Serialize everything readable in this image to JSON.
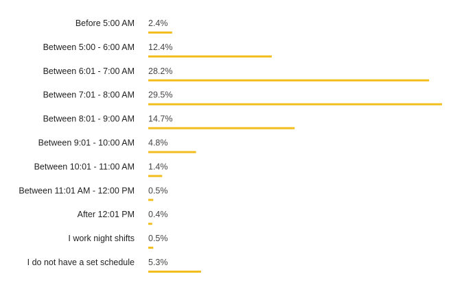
{
  "chart_data": {
    "type": "bar",
    "orientation": "horizontal",
    "categories": [
      "Before 5:00 AM",
      "Between 5:00 - 6:00 AM",
      "Between 6:01 - 7:00 AM",
      "Between 7:01 - 8:00 AM",
      "Between 8:01 - 9:00 AM",
      "Between 9:01 - 10:00 AM",
      "Between 10:01 - 11:00 AM",
      "Between 11:01 AM - 12:00 PM",
      "After 12:01 PM",
      "I work night shifts",
      "I do not have a set schedule"
    ],
    "values": [
      2.4,
      12.4,
      28.2,
      29.5,
      14.7,
      4.8,
      1.4,
      0.5,
      0.4,
      0.5,
      5.3
    ],
    "value_labels": [
      "2.4%",
      "12.4%",
      "28.2%",
      "29.5%",
      "14.7%",
      "4.8%",
      "1.4%",
      "0.5%",
      "0.4%",
      "0.5%",
      "5.3%"
    ],
    "unit": "%",
    "xlim": [
      0,
      29.5
    ],
    "grid": false,
    "legend": "none",
    "bar_color": "#F1BE1E"
  }
}
